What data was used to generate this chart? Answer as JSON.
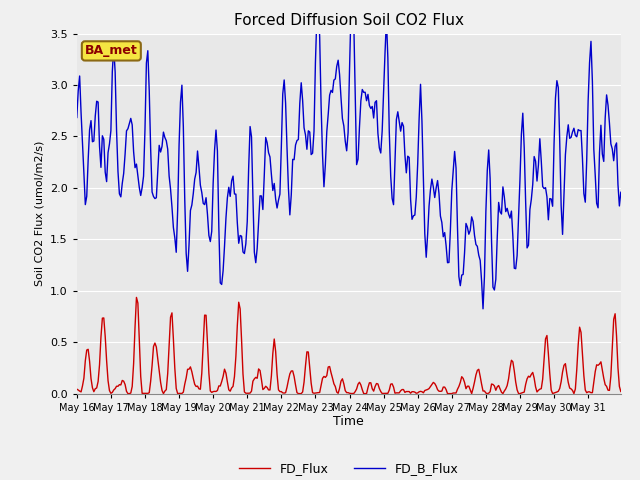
{
  "title": "Forced Diffusion Soil CO2 Flux",
  "xlabel": "Time",
  "ylabel": "Soil CO2 Flux (umol/m2/s)",
  "site_label": "BA_met",
  "fd_color": "#cc0000",
  "fd_b_color": "#0000cc",
  "ylim": [
    0.0,
    3.5
  ],
  "legend_fd": "FD_Flux",
  "legend_fd_b": "FD_B_Flux",
  "linewidth": 1.0,
  "fig_bg": "#f0f0f0",
  "ax_bg": "#e8e8e8"
}
